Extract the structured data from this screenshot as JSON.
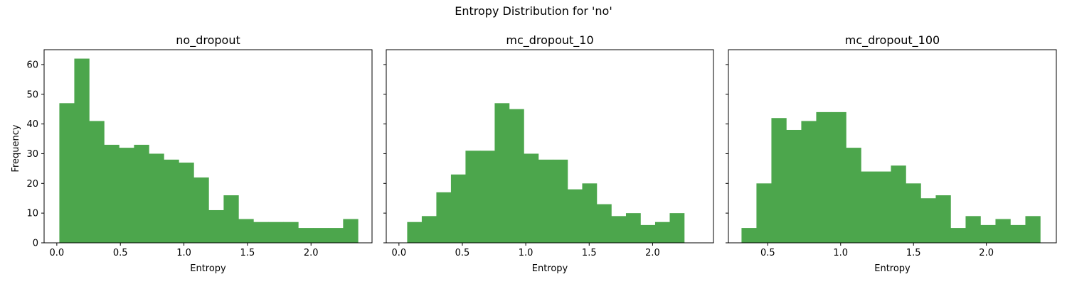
{
  "figure": {
    "suptitle": "Entropy Distribution for 'no'",
    "bar_color": "#4ca64c",
    "ylabel": "Frequency"
  },
  "chart_data": [
    {
      "type": "bar",
      "subtype": "histogram",
      "title": "no_dropout",
      "xlabel": "Entropy",
      "ylabel": "Frequency",
      "xlim": [
        -0.1,
        2.48
      ],
      "ylim": [
        0,
        65
      ],
      "xticks": [
        "0.0",
        "0.5",
        "1.0",
        "1.5",
        "2.0"
      ],
      "yticks": [
        "0",
        "10",
        "20",
        "30",
        "40",
        "50",
        "60"
      ],
      "bin_start": 0.02,
      "bin_width": 0.1175,
      "values": [
        47,
        62,
        41,
        33,
        32,
        33,
        30,
        28,
        27,
        22,
        11,
        16,
        8,
        7,
        7,
        7,
        5,
        5,
        5,
        8
      ]
    },
    {
      "type": "bar",
      "subtype": "histogram",
      "title": "mc_dropout_10",
      "xlabel": "Entropy",
      "ylabel": "",
      "xlim": [
        -0.1,
        2.48
      ],
      "ylim": [
        0,
        65
      ],
      "xticks": [
        "0.0",
        "0.5",
        "1.0",
        "1.5",
        "2.0"
      ],
      "yticks": [
        "0",
        "10",
        "20",
        "30",
        "40",
        "50",
        "60"
      ],
      "bin_start": 0.065,
      "bin_width": 0.115,
      "values": [
        7,
        9,
        17,
        23,
        31,
        31,
        47,
        45,
        30,
        28,
        28,
        18,
        20,
        13,
        9,
        10,
        6,
        7,
        10
      ]
    },
    {
      "type": "bar",
      "subtype": "histogram",
      "title": "mc_dropout_100",
      "xlabel": "Entropy",
      "ylabel": "",
      "xlim": [
        0.23,
        2.48
      ],
      "ylim": [
        0,
        65
      ],
      "xticks": [
        "0.5",
        "1.0",
        "1.5",
        "2.0"
      ],
      "yticks": [
        "0",
        "10",
        "20",
        "30",
        "40",
        "50",
        "60"
      ],
      "bin_start": 0.32,
      "bin_width": 0.1025,
      "values": [
        5,
        20,
        42,
        38,
        41,
        44,
        44,
        32,
        24,
        24,
        26,
        20,
        15,
        16,
        5,
        9,
        6,
        8,
        6,
        9
      ]
    }
  ]
}
